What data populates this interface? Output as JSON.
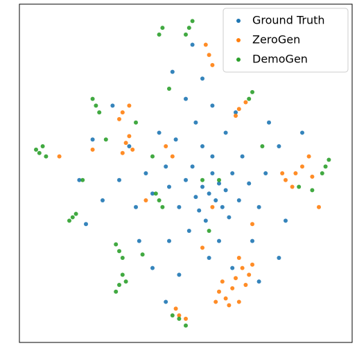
{
  "chart_data": {
    "type": "scatter",
    "xlim": [
      0,
      100
    ],
    "ylim": [
      0,
      100
    ],
    "legend": "upper right",
    "series": [
      {
        "name": "Ground Truth",
        "color": "#1f77b4",
        "x": [
          57,
          55,
          59,
          60,
          53,
          62,
          58,
          54,
          61,
          50,
          64,
          56,
          52,
          66,
          48,
          58,
          63,
          45,
          69,
          51,
          55,
          44,
          67,
          60,
          47,
          40,
          72,
          53,
          62,
          38,
          74,
          45,
          57,
          35,
          70,
          42,
          65,
          50,
          30,
          78,
          55,
          46,
          25,
          80,
          36,
          58,
          33,
          75,
          48,
          40,
          22,
          85,
          20,
          64,
          52,
          28,
          78,
          44,
          72,
          18
        ],
        "values": [
          44,
          46,
          42,
          47,
          43,
          45,
          50,
          39,
          40,
          48,
          50,
          36,
          52,
          42,
          40,
          55,
          37,
          46,
          47,
          33,
          58,
          52,
          55,
          30,
          60,
          44,
          40,
          65,
          62,
          50,
          50,
          30,
          25,
          40,
          30,
          62,
          68,
          72,
          48,
          58,
          78,
          80,
          42,
          36,
          30,
          70,
          58,
          65,
          20,
          22,
          60,
          62,
          35,
          22,
          88,
          70,
          25,
          12,
          18,
          48
        ]
      },
      {
        "name": "ZeroGen",
        "color": "#ff7f0e",
        "x": [
          60,
          62,
          64,
          66,
          61,
          63,
          65,
          59,
          67,
          69,
          68,
          70,
          66,
          48,
          47,
          50,
          31,
          33,
          30,
          32,
          34,
          33,
          31,
          85,
          87,
          83,
          80,
          82,
          79,
          88,
          57,
          56,
          58,
          66,
          68,
          65,
          44,
          46,
          58,
          55,
          22,
          38,
          70,
          12,
          90
        ],
        "values": [
          15,
          13,
          16,
          12,
          18,
          11,
          19,
          12,
          22,
          20,
          17,
          23,
          25,
          8,
          10,
          7,
          68,
          70,
          66,
          59,
          57,
          61,
          56,
          52,
          55,
          50,
          48,
          46,
          50,
          49,
          85,
          88,
          82,
          69,
          71,
          67,
          58,
          55,
          40,
          28,
          57,
          42,
          35,
          55,
          40
        ]
      },
      {
        "name": "DemoGen",
        "color": "#2ca02c",
        "x": [
          6,
          7,
          8,
          5,
          16,
          15,
          17,
          30,
          29,
          31,
          30,
          29,
          32,
          31,
          51,
          52,
          50,
          42,
          43,
          23,
          22,
          24,
          92,
          91,
          93,
          42,
          41,
          43,
          69,
          70,
          48,
          50,
          46,
          45,
          37,
          84,
          88,
          60,
          57,
          19,
          35,
          26,
          73,
          55,
          40
        ],
        "values": [
          56,
          58,
          55,
          57,
          37,
          36,
          38,
          27,
          29,
          25,
          17,
          15,
          18,
          20,
          93,
          95,
          91,
          91,
          93,
          70,
          72,
          68,
          52,
          50,
          54,
          42,
          44,
          40,
          72,
          74,
          7,
          5,
          8,
          75,
          26,
          46,
          45,
          48,
          33,
          48,
          65,
          60,
          58,
          48,
          55
        ]
      }
    ]
  }
}
